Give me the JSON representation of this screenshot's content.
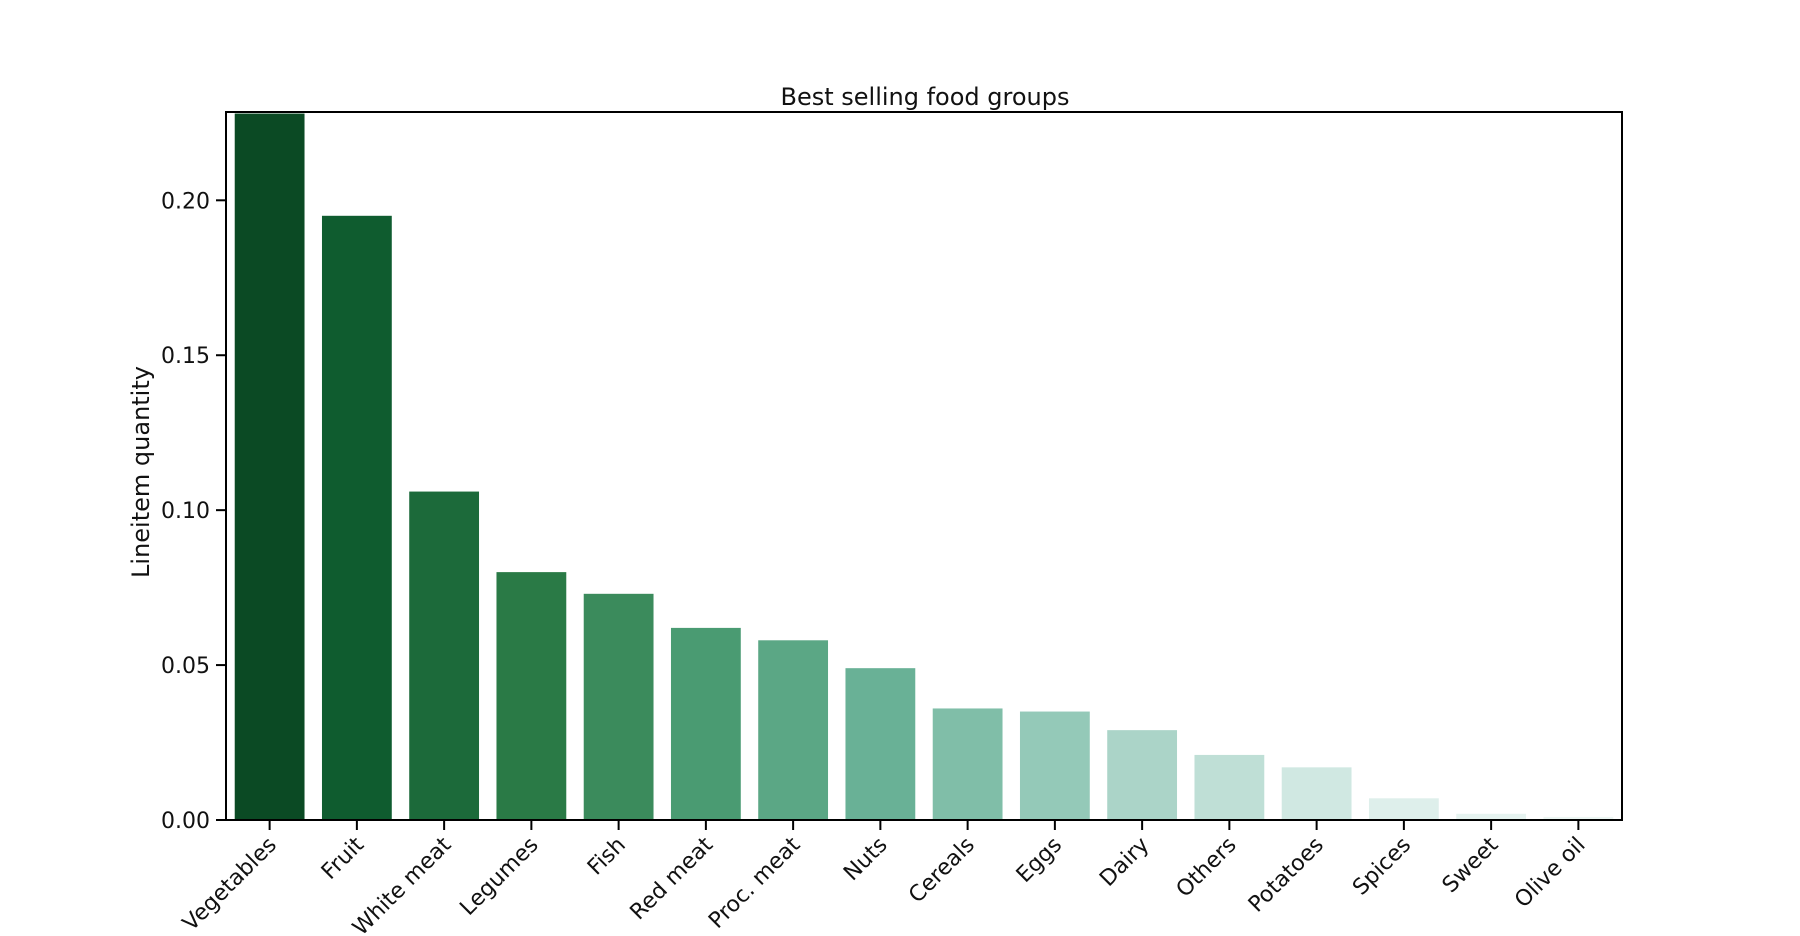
{
  "chart_data": {
    "type": "bar",
    "title": "Best selling food groups",
    "xlabel": "",
    "ylabel": "Lineitem quantity",
    "ylim": [
      0,
      0.2285
    ],
    "yticks": [
      "0.00",
      "0.05",
      "0.10",
      "0.15",
      "0.20"
    ],
    "ytick_values": [
      0,
      0.05,
      0.1,
      0.15,
      0.2
    ],
    "grid": false,
    "categories": [
      "Vegetables",
      "Fruit",
      "White meat",
      "Legumes",
      "Fish",
      "Red meat",
      "Proc. meat",
      "Nuts",
      "Cereals",
      "Eggs",
      "Dairy",
      "Others",
      "Potatoes",
      "Spices",
      "Sweet",
      "Olive oil"
    ],
    "values": [
      0.228,
      0.195,
      0.106,
      0.08,
      0.073,
      0.062,
      0.058,
      0.049,
      0.036,
      0.035,
      0.029,
      0.021,
      0.017,
      0.007,
      0.002,
      0.001
    ],
    "colors": [
      "#0b4a24",
      "#0f5c2f",
      "#1c6a3a",
      "#2a7a46",
      "#3b8b5c",
      "#4a9b72",
      "#5ba785",
      "#69b196",
      "#80bea8",
      "#94c9b8",
      "#abd4c8",
      "#bfdfd6",
      "#d0e8e2",
      "#deefeb",
      "#e6f3f0",
      "#ecf6f3"
    ]
  }
}
